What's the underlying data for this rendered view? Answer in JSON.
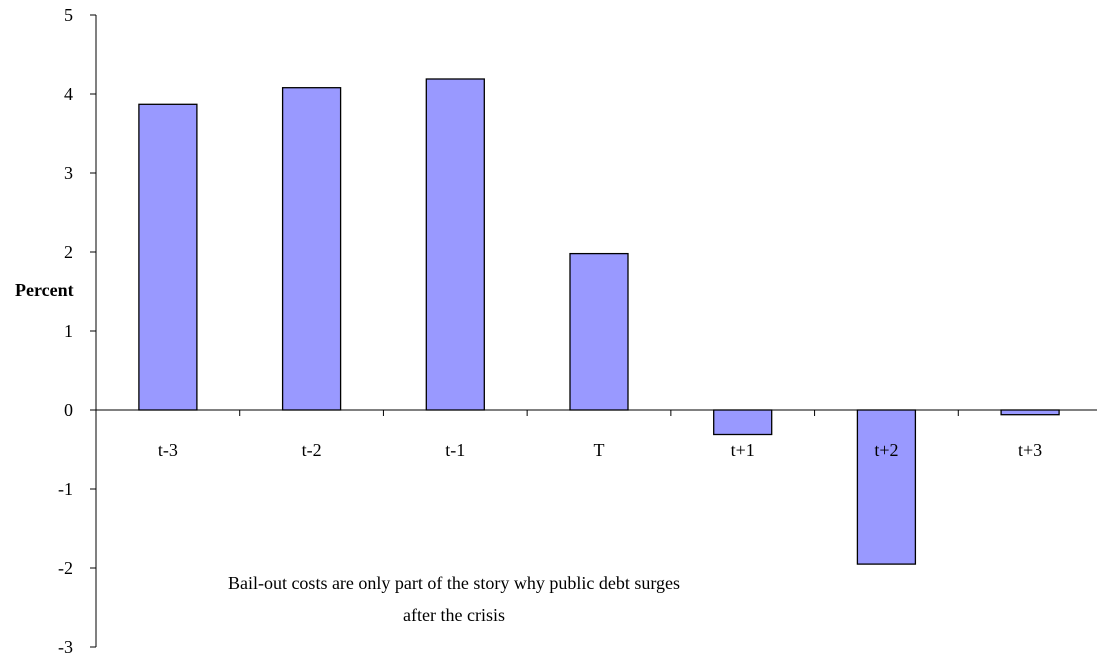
{
  "chart_data": {
    "type": "bar",
    "categories": [
      "t-3",
      "t-2",
      "t-1",
      "T",
      "t+1",
      "t+2",
      "t+3"
    ],
    "values": [
      3.87,
      4.08,
      4.19,
      1.98,
      -0.31,
      -1.95,
      -0.06
    ],
    "title": "",
    "xlabel": "",
    "ylabel": "Percent",
    "ylim": [
      -3,
      5
    ],
    "yticks": [
      -3,
      -2,
      -1,
      0,
      1,
      2,
      3,
      4,
      5
    ],
    "grid": false,
    "legend": "none",
    "bar_color": "#9999ff",
    "annotation": {
      "line1": "Bail-out costs are only part of the story why public debt surges",
      "line2": "after the crisis"
    }
  }
}
